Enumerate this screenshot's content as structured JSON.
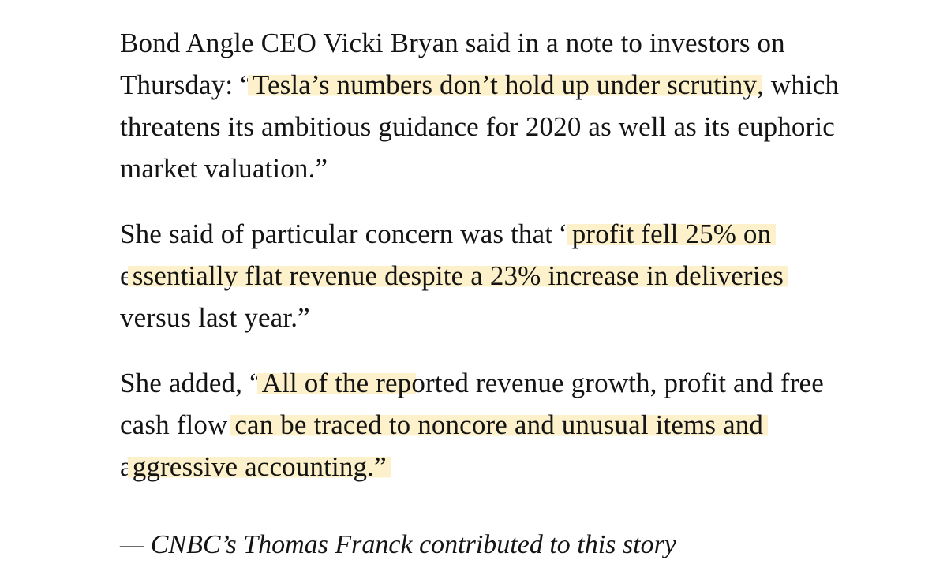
{
  "paragraph1": {
    "l1": "Bond Angle CEO Vicki Bryan said in a note to investors on",
    "l2_a": "Thursday: “",
    "l2_hl": "Tesla’s numbers don’t hold up under scrutiny",
    "l2_b": ", which",
    "l3": "threatens its ambitious guidance for 2020 as well as its euphoric",
    "l4": "market valuation.”"
  },
  "paragraph2": {
    "l1_a": "She said of particular concern was that “",
    "l1_hl": "profit fell 25% on",
    "l2_a": "e",
    "l2_hl": "ssentially flat revenue despite a 23% increase in deliveries",
    "l3": "versus last year.”"
  },
  "paragraph3": {
    "l1_a": "She added, “",
    "l1_hl": "All of the rep",
    "l1_b": "orted revenue growth, profit and free",
    "l2_a": "cash flow ",
    "l2_hl": "can be traced to noncore and unusual items and",
    "l3_a": "a",
    "l3_hl": "ggressive accounting.”"
  },
  "credit": "— CNBC’s Thomas Franck contributed to this story",
  "highlight_color": "#fdf1cc"
}
